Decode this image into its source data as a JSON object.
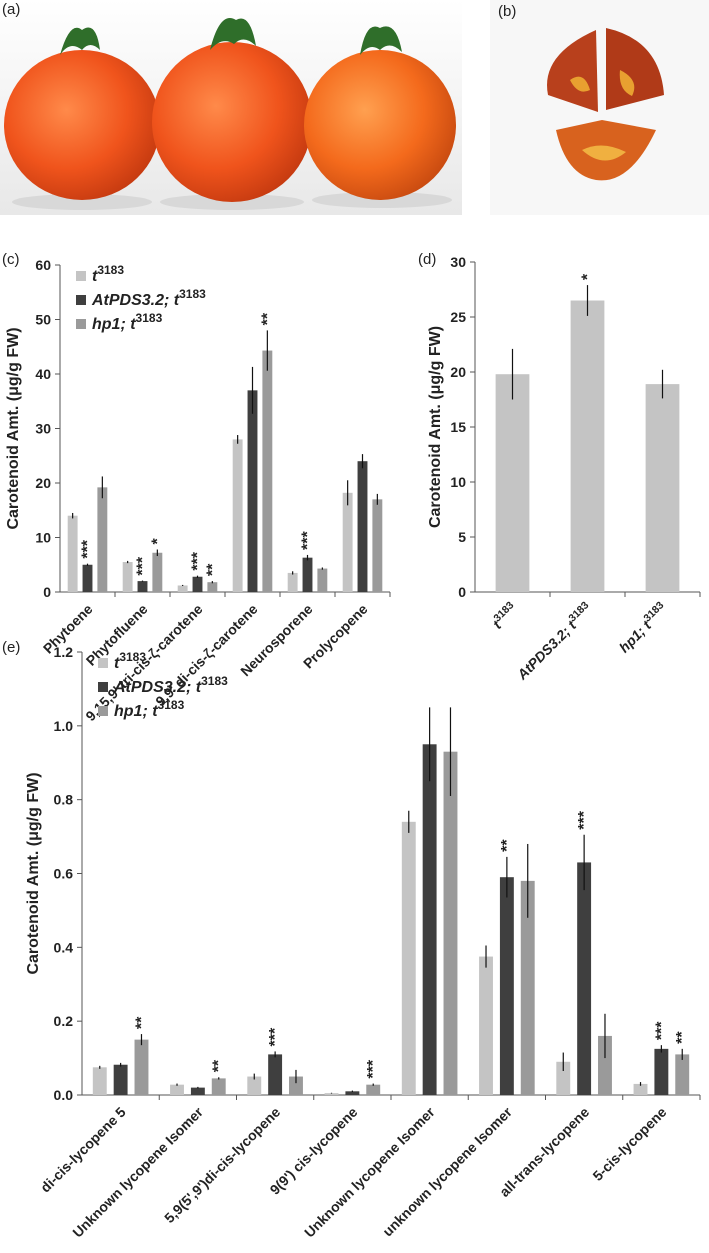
{
  "panel_labels": [
    "(a)",
    "(b)",
    "(c)",
    "(d)",
    "(e)"
  ],
  "chart_data": [
    {
      "type": "bar",
      "y_label": "Carotenoid Amt. (μg/g FW)",
      "categories": [
        "Phytoene",
        "Phytofluene",
        "9,15,9' tri-cis-ζ-carotene",
        "9,9' di-cis-ζ-carotene",
        "Neurosporene",
        "Prolycopene"
      ],
      "series": [
        {
          "name": "t3183",
          "color": "#c4c4c4",
          "values": [
            14,
            5.5,
            1.2,
            28,
            3.5,
            18.2
          ],
          "errors": [
            0.5,
            0.2,
            0.1,
            0.8,
            0.3,
            2.3
          ],
          "significance": [
            null,
            null,
            null,
            null,
            null,
            null
          ]
        },
        {
          "name": "AtPDS3.2; t3183",
          "color": "#3f3f3f",
          "values": [
            5,
            2,
            2.8,
            37,
            6.3,
            24
          ],
          "errors": [
            0.2,
            0.1,
            0.2,
            4.3,
            0.5,
            1.3
          ],
          "significance": [
            "***",
            "***",
            "***",
            null,
            "***",
            null
          ]
        },
        {
          "name": "hp1; t3183",
          "color": "#9a9a9a",
          "values": [
            19.2,
            7.2,
            1.8,
            44.3,
            4.3,
            17
          ],
          "errors": [
            2.0,
            0.6,
            0.2,
            3.7,
            0.2,
            1.0
          ],
          "significance": [
            null,
            "*",
            "**",
            "**",
            null,
            null
          ]
        }
      ],
      "ylim": [
        0,
        60
      ],
      "yticks": [
        0,
        10,
        20,
        30,
        40,
        50,
        60
      ],
      "legend": "top-left"
    },
    {
      "type": "bar",
      "y_label": "Carotenoid Amt. (μg/g FW)",
      "categories": [
        "t3183",
        "AtPDS3.2; t3183",
        "hp1; t3183"
      ],
      "series": [
        {
          "color": "#c4c4c4",
          "values": [
            19.8,
            26.5,
            18.9
          ],
          "errors": [
            2.3,
            1.4,
            1.3
          ],
          "significance": [
            null,
            "*",
            null
          ]
        }
      ],
      "ylim": [
        0,
        30
      ],
      "yticks": [
        0,
        5,
        10,
        15,
        20,
        25,
        30
      ]
    },
    {
      "type": "bar",
      "y_label": "Carotenoid Amt. (μg/g FW)",
      "categories": [
        "di-cis-lycopene 5",
        "Unknown lycopene Isomer",
        "5,9(5',9')di-cis-lycopene",
        "9(9') cis-lycopene",
        "Unknown lycopene Isomer",
        "unknown lycopene Isomer",
        "all-trans-lycopene",
        "5-cis-lycopene"
      ],
      "series": [
        {
          "name": "t3183",
          "color": "#c4c4c4",
          "values": [
            0.075,
            0.028,
            0.05,
            0.005,
            0.74,
            0.375,
            0.09,
            0.03
          ],
          "errors": [
            0.004,
            0.003,
            0.008,
            0.001,
            0.03,
            0.03,
            0.025,
            0.005
          ],
          "significance": [
            null,
            null,
            null,
            null,
            null,
            null,
            null,
            null
          ]
        },
        {
          "name": "AtPDS3.2; t3183",
          "color": "#3f3f3f",
          "values": [
            0.082,
            0.02,
            0.11,
            0.01,
            0.95,
            0.59,
            0.63,
            0.125
          ],
          "errors": [
            0.005,
            0.002,
            0.008,
            0.002,
            0.1,
            0.055,
            0.075,
            0.01
          ],
          "significance": [
            null,
            null,
            "***",
            null,
            null,
            "**",
            "***",
            "***"
          ]
        },
        {
          "name": "hp1; t3183",
          "color": "#9a9a9a",
          "values": [
            0.15,
            0.045,
            0.05,
            0.028,
            0.93,
            0.58,
            0.16,
            0.11
          ],
          "errors": [
            0.015,
            0.003,
            0.018,
            0.003,
            0.12,
            0.1,
            0.06,
            0.015
          ],
          "significance": [
            "**",
            "**",
            null,
            "***",
            null,
            null,
            null,
            "**"
          ]
        }
      ],
      "ylim": [
        0,
        1.2
      ],
      "yticks": [
        {
          "value": 0,
          "label": "0.0"
        },
        0.2,
        0.4,
        0.6,
        0.8,
        {
          "value": 1,
          "label": "1.0"
        },
        1.2
      ],
      "legend": "top-left"
    }
  ]
}
